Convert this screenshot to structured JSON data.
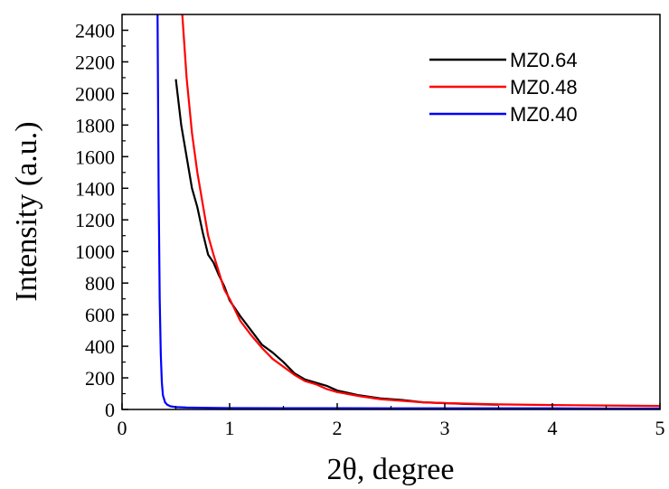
{
  "chart_data": {
    "type": "line",
    "xlabel": "2θ, degree",
    "ylabel": "Intensity (a.u.)",
    "xlim": [
      0,
      5
    ],
    "ylim": [
      0,
      2500
    ],
    "x_ticks": [
      0,
      1,
      2,
      3,
      4,
      5
    ],
    "x_tick_labels": [
      "0",
      "1",
      "2",
      "3",
      "4",
      "5"
    ],
    "y_ticks": [
      0,
      200,
      400,
      600,
      800,
      1000,
      1200,
      1400,
      1600,
      1800,
      2000,
      2200,
      2400
    ],
    "y_tick_labels": [
      "0",
      "200",
      "400",
      "600",
      "800",
      "1000",
      "1200",
      "1400",
      "1600",
      "1800",
      "2000",
      "2200",
      "2400"
    ],
    "grid": false,
    "legend_position": "top-right",
    "series": [
      {
        "name": "MZ0.64",
        "color": "#000000",
        "x": [
          0.5,
          0.55,
          0.6,
          0.65,
          0.7,
          0.75,
          0.8,
          0.85,
          0.9,
          0.95,
          1.0,
          1.1,
          1.2,
          1.3,
          1.4,
          1.5,
          1.6,
          1.7,
          1.8,
          1.9,
          2.0,
          2.2,
          2.4,
          2.6,
          2.8,
          3.0,
          3.2,
          3.5
        ],
        "y": [
          2090,
          1800,
          1600,
          1400,
          1280,
          1120,
          980,
          930,
          850,
          780,
          690,
          590,
          500,
          410,
          360,
          300,
          230,
          190,
          170,
          150,
          120,
          90,
          70,
          60,
          45,
          40,
          35,
          30
        ]
      },
      {
        "name": "MZ0.48",
        "color": "#ff0000",
        "x": [
          0.56,
          0.6,
          0.65,
          0.7,
          0.75,
          0.8,
          0.85,
          0.9,
          0.95,
          1.0,
          1.1,
          1.2,
          1.3,
          1.4,
          1.5,
          1.6,
          1.7,
          1.8,
          1.9,
          2.0,
          2.2,
          2.4,
          2.6,
          2.8,
          3.0,
          3.5,
          4.0,
          4.5,
          5.0
        ],
        "y": [
          2500,
          2100,
          1750,
          1500,
          1300,
          1100,
          980,
          870,
          760,
          700,
          560,
          470,
          390,
          320,
          270,
          220,
          180,
          160,
          130,
          110,
          85,
          65,
          55,
          45,
          40,
          32,
          28,
          25,
          22
        ]
      },
      {
        "name": "MZ0.40",
        "color": "#0000ff",
        "x": [
          0.33,
          0.34,
          0.35,
          0.36,
          0.37,
          0.38,
          0.4,
          0.42,
          0.45,
          0.5,
          0.6,
          0.8,
          1.0,
          1.5,
          2.0,
          2.5,
          3.0,
          3.5,
          4.0,
          4.5,
          5.0
        ],
        "y": [
          2500,
          1400,
          700,
          350,
          170,
          90,
          45,
          30,
          20,
          15,
          12,
          10,
          9,
          8,
          8,
          7,
          7,
          7,
          7,
          6,
          6
        ]
      }
    ]
  }
}
